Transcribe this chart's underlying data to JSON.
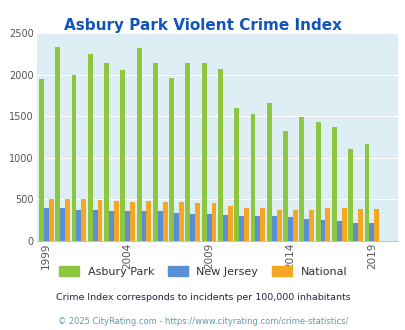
{
  "title": "Asbury Park Violent Crime Index",
  "years": [
    1999,
    2000,
    2001,
    2002,
    2003,
    2004,
    2005,
    2006,
    2007,
    2008,
    2009,
    2010,
    2011,
    2012,
    2013,
    2014,
    2015,
    2016,
    2017,
    2018,
    2019,
    2020
  ],
  "asbury_park": [
    1950,
    2330,
    2000,
    2250,
    2140,
    2060,
    2320,
    2140,
    1960,
    2140,
    2140,
    2070,
    1600,
    1520,
    1660,
    1320,
    1490,
    1430,
    1370,
    1110,
    1160,
    0
  ],
  "new_jersey": [
    400,
    400,
    370,
    370,
    360,
    360,
    360,
    355,
    330,
    325,
    320,
    315,
    305,
    300,
    295,
    285,
    260,
    250,
    240,
    215,
    215,
    0
  ],
  "national": [
    500,
    505,
    500,
    495,
    475,
    470,
    475,
    470,
    465,
    455,
    460,
    420,
    395,
    390,
    375,
    370,
    375,
    395,
    400,
    385,
    380,
    0
  ],
  "color_asbury": "#8dc63f",
  "color_nj": "#5b8fd4",
  "color_national": "#f5a623",
  "bg_color": "#deeef5",
  "title_color": "#1155bb",
  "subtitle": "Crime Index corresponds to incidents per 100,000 inhabitants",
  "subtitle_color": "#222244",
  "footer": "© 2025 CityRating.com - https://www.cityrating.com/crime-statistics/",
  "footer_color": "#6699aa",
  "ylim": [
    0,
    2500
  ],
  "yticks": [
    0,
    500,
    1000,
    1500,
    2000,
    2500
  ],
  "xtick_labels": [
    "1999",
    "2004",
    "2009",
    "2014",
    "2019"
  ],
  "xtick_positions": [
    1999,
    2004,
    2009,
    2014,
    2019
  ],
  "legend_labels": [
    "Asbury Park",
    "New Jersey",
    "National"
  ],
  "bar_width": 0.3
}
